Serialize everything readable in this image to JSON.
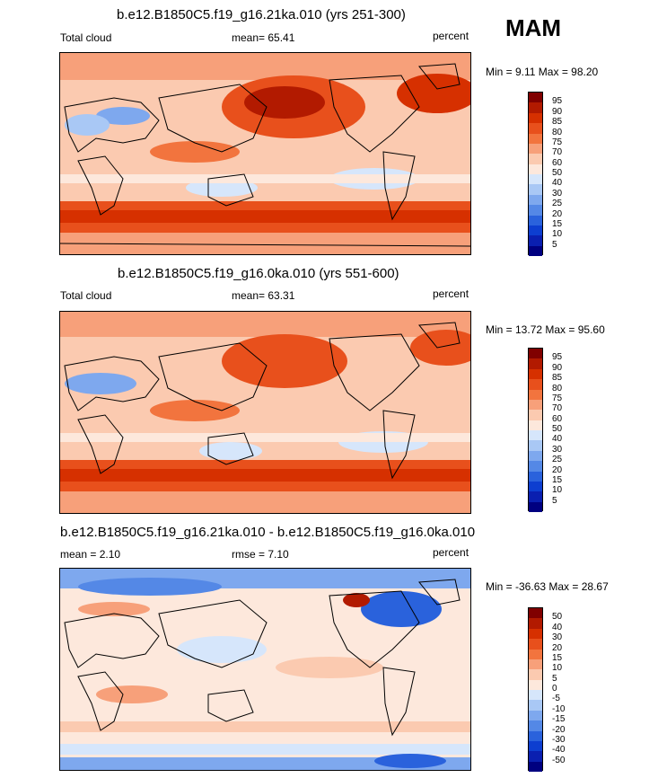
{
  "season": "MAM",
  "panels": [
    {
      "title": "b.e12.B1850C5.f19_g16.21ka.010 (yrs 251-300)",
      "left_label": "Total cloud",
      "center_label": "mean=  65.41",
      "right_label": "percent",
      "minmax": "Min =   9.11 Max =  98.20"
    },
    {
      "title": "b.e12.B1850C5.f19_g16.0ka.010 (yrs 551-600)",
      "left_label": "Total cloud",
      "center_label": "mean=  63.31",
      "right_label": "percent",
      "minmax": "Min =  13.72 Max =  95.60"
    },
    {
      "title": "b.e12.B1850C5.f19_g16.21ka.010 - b.e12.B1850C5.f19_g16.0ka.010",
      "left_label": "mean =   2.10",
      "center_label": "rmse =   7.10",
      "right_label": "percent",
      "minmax": "Min = -36.63 Max =  28.67"
    }
  ],
  "colorbars": {
    "absolute": {
      "labels": [
        "95",
        "90",
        "85",
        "80",
        "75",
        "70",
        "60",
        "50",
        "40",
        "30",
        "25",
        "20",
        "15",
        "10",
        "5"
      ],
      "colors": [
        "#800000",
        "#b21a00",
        "#d63000",
        "#e8501c",
        "#f2743e",
        "#f7a07a",
        "#fbcab0",
        "#fde8dc",
        "#d6e6fb",
        "#a9c8f5",
        "#7ea8ee",
        "#5488e6",
        "#2a62dc",
        "#0d3ed0",
        "#0a1fb0",
        "#000080"
      ]
    },
    "anomaly": {
      "labels": [
        "50",
        "40",
        "30",
        "20",
        "15",
        "10",
        "5",
        "0",
        "-5",
        "-10",
        "-15",
        "-20",
        "-30",
        "-40",
        "-50"
      ],
      "colors": [
        "#800000",
        "#b21a00",
        "#d63000",
        "#e8501c",
        "#f2743e",
        "#f7a07a",
        "#fbcab0",
        "#fde8dc",
        "#d6e6fb",
        "#a9c8f5",
        "#7ea8ee",
        "#5488e6",
        "#2a62dc",
        "#0d3ed0",
        "#0a1fb0",
        "#000080"
      ]
    }
  }
}
